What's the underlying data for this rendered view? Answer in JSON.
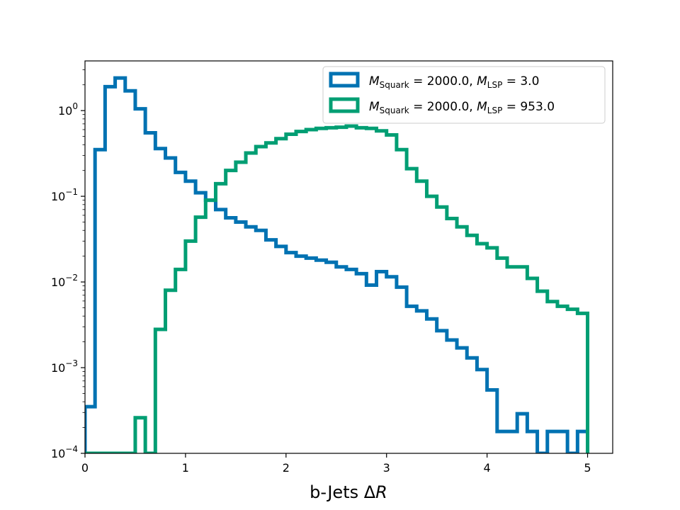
{
  "chart_data": {
    "type": "line",
    "style": "step-histogram",
    "xlabel": "b-Jets ΔR",
    "ylabel": "",
    "xlim": [
      0,
      5.25
    ],
    "ylim": [
      0.0001,
      3.8
    ],
    "yscale": "log",
    "grid": false,
    "legend_position": "top-right",
    "x_ticks": [
      0,
      1,
      2,
      3,
      4,
      5
    ],
    "y_ticks": [
      {
        "value": 0.0001,
        "base": "10",
        "exp": "−4"
      },
      {
        "value": 0.001,
        "base": "10",
        "exp": "−3"
      },
      {
        "value": 0.01,
        "base": "10",
        "exp": "−2"
      },
      {
        "value": 0.1,
        "base": "10",
        "exp": "−1"
      },
      {
        "value": 1,
        "base": "10",
        "exp": "0"
      }
    ],
    "bin_edges": [
      0,
      0.1,
      0.2,
      0.3,
      0.4,
      0.5,
      0.6,
      0.7,
      0.8,
      0.9,
      1.0,
      1.1,
      1.2,
      1.3,
      1.4,
      1.5,
      1.6,
      1.7,
      1.8,
      1.9,
      2.0,
      2.1,
      2.2,
      2.3,
      2.4,
      2.5,
      2.6,
      2.7,
      2.8,
      2.9,
      3.0,
      3.1,
      3.2,
      3.3,
      3.4,
      3.5,
      3.6,
      3.7,
      3.8,
      3.9,
      4.0,
      4.1,
      4.2,
      4.3,
      4.4,
      4.5,
      4.6,
      4.7,
      4.8,
      4.9,
      5.0
    ],
    "series": [
      {
        "name_main": "M",
        "name_sub1": "Squark",
        "name_mid": " = 2000.0, ",
        "name_sub2": "LSP",
        "name_end": " = 3.0",
        "color": "#0072B2",
        "values": [
          0.00035,
          0.35,
          1.9,
          2.4,
          1.7,
          1.05,
          0.55,
          0.36,
          0.28,
          0.19,
          0.15,
          0.11,
          0.09,
          0.07,
          0.056,
          0.05,
          0.044,
          0.04,
          0.031,
          0.026,
          0.022,
          0.02,
          0.019,
          0.018,
          0.017,
          0.015,
          0.014,
          0.0125,
          0.0092,
          0.0132,
          0.0115,
          0.0087,
          0.0052,
          0.0046,
          0.0037,
          0.0027,
          0.0021,
          0.0017,
          0.0013,
          0.00095,
          0.00055,
          0.00018,
          0.00018,
          0.00029,
          0.00018,
          0.0001,
          0.00018,
          0.00018,
          0.0001,
          0.00018
        ]
      },
      {
        "name_main": "M",
        "name_sub1": "Squark",
        "name_mid": " = 2000.0, ",
        "name_sub2": "LSP",
        "name_end": " = 953.0",
        "color": "#009E73",
        "values": [
          0.0001,
          0.0001,
          0.0001,
          0.0001,
          0.0001,
          0.00026,
          0.0001,
          0.0028,
          0.008,
          0.014,
          0.03,
          0.057,
          0.09,
          0.14,
          0.2,
          0.25,
          0.32,
          0.38,
          0.42,
          0.47,
          0.53,
          0.57,
          0.6,
          0.62,
          0.63,
          0.64,
          0.66,
          0.63,
          0.62,
          0.58,
          0.52,
          0.35,
          0.21,
          0.15,
          0.1,
          0.075,
          0.055,
          0.044,
          0.035,
          0.028,
          0.025,
          0.019,
          0.015,
          0.015,
          0.011,
          0.0078,
          0.0059,
          0.0052,
          0.0048,
          0.0043
        ]
      }
    ]
  }
}
